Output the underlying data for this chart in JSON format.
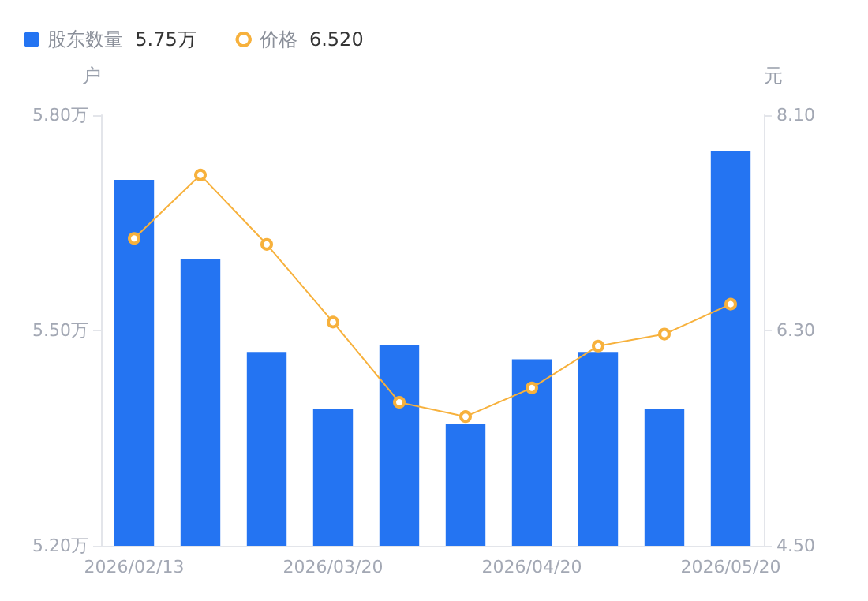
{
  "chart_data": {
    "type": "bar",
    "categories": [
      "2026/02/13",
      null,
      null,
      "2026/03/20",
      null,
      null,
      "2026/04/20",
      null,
      null,
      "2026/05/20"
    ],
    "series": [
      {
        "name": "股东数量",
        "color": "#2474f2",
        "values": [
          5.71,
          5.6,
          5.47,
          5.39,
          5.48,
          5.37,
          5.46,
          5.47,
          5.39,
          5.75
        ]
      },
      {
        "name": "价格",
        "type": "line",
        "axis": "y2",
        "color": "#f7b13c",
        "values": [
          7.07,
          7.6,
          7.02,
          6.37,
          5.7,
          5.58,
          5.82,
          6.17,
          6.27,
          6.52
        ]
      }
    ],
    "annotations": [
      "5.75万",
      "6.520"
    ],
    "ylabel": "户",
    "y2label": "元",
    "ylim": [
      5.2,
      5.8
    ],
    "yticks": [
      {
        "value": 5.2,
        "label": "5.20万"
      },
      {
        "value": 5.5,
        "label": "5.50万"
      },
      {
        "value": 5.8,
        "label": "5.80万"
      }
    ],
    "y2lim": [
      4.5,
      8.1
    ],
    "y2ticks": [
      {
        "value": 4.5,
        "label": "4.50"
      },
      {
        "value": 6.3,
        "label": "6.30"
      },
      {
        "value": 8.1,
        "label": "8.10"
      }
    ],
    "grid": false,
    "legend": "top left",
    "marker": "circle",
    "line_style": "solid"
  }
}
